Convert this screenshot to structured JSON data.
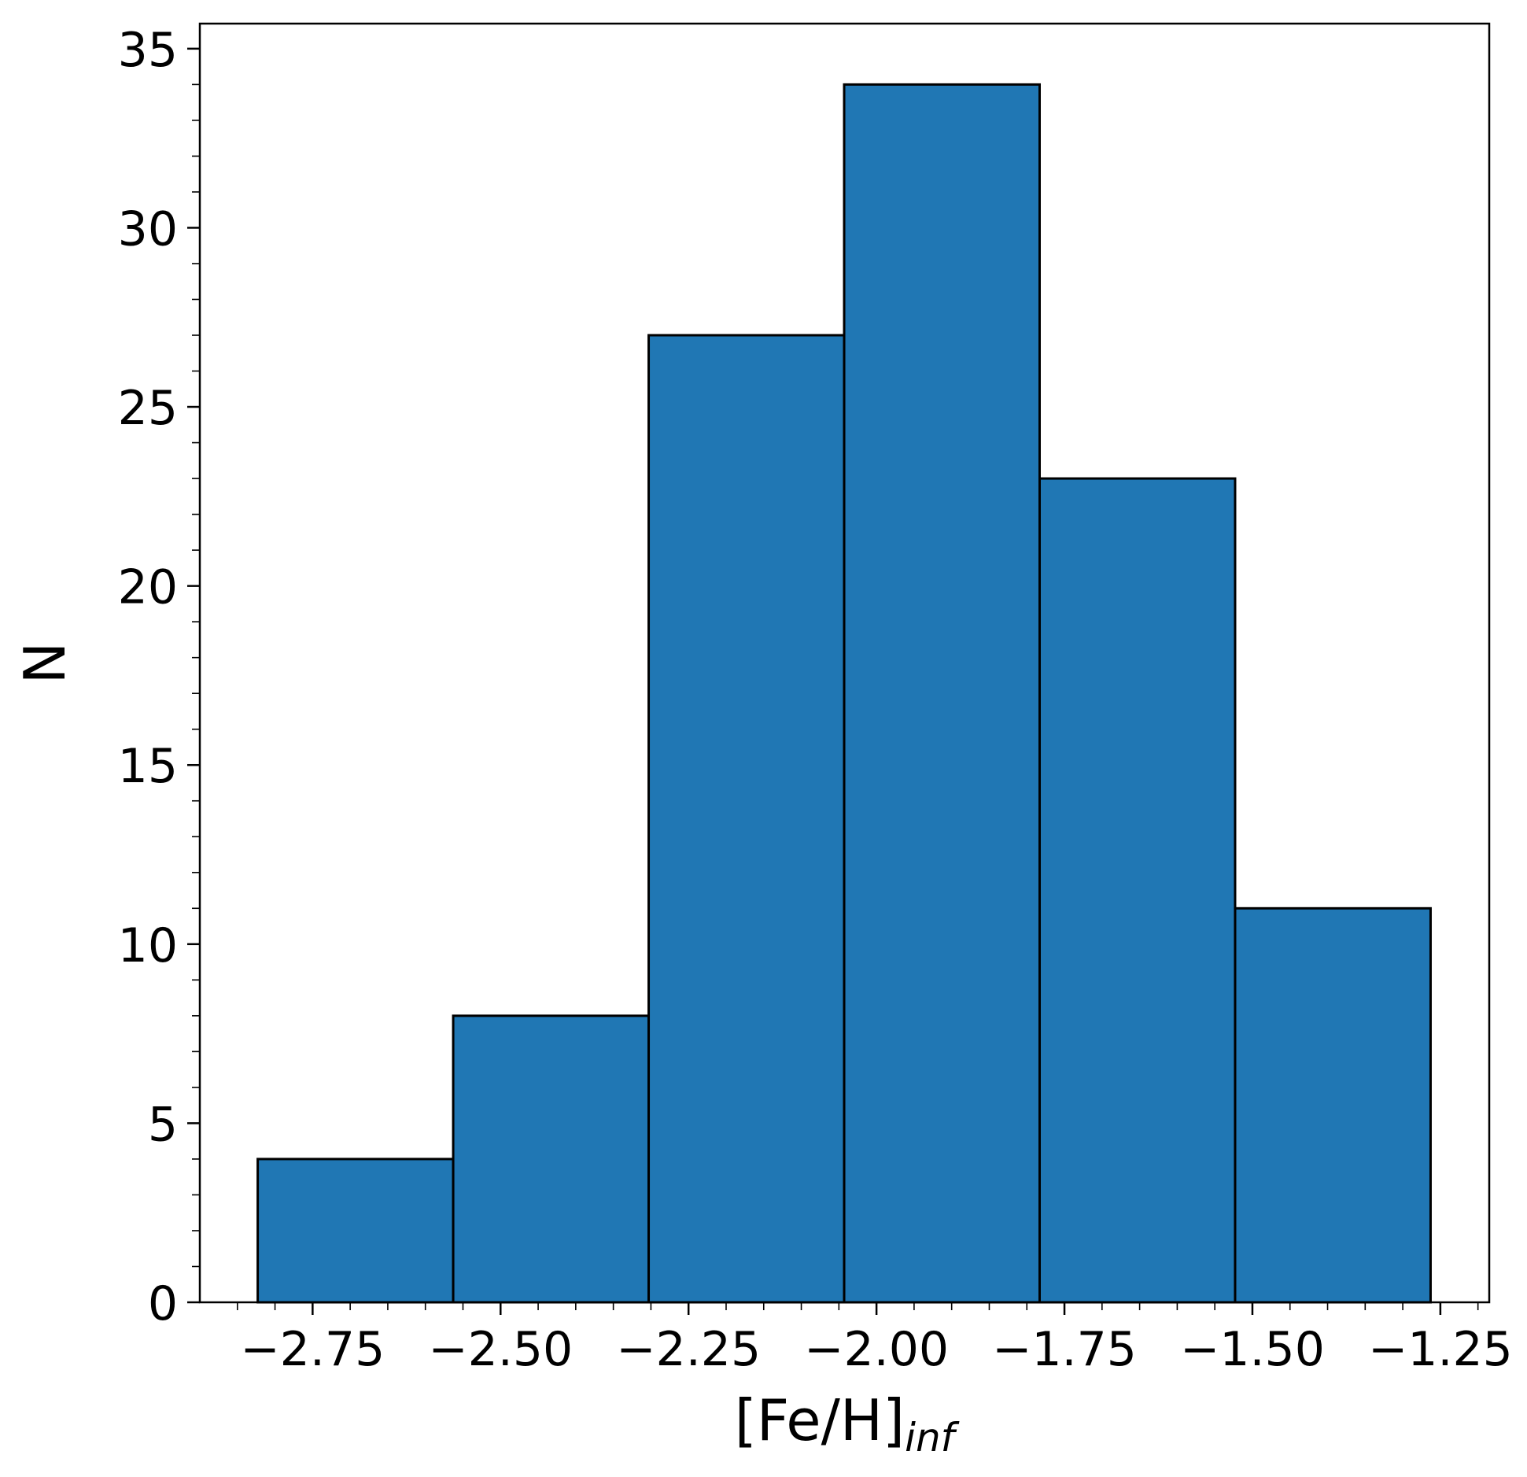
{
  "chart_data": {
    "type": "bar",
    "subtype": "histogram",
    "title": "",
    "xlabel": "[Fe/H]",
    "xlabel_subscript": "inf",
    "ylabel": "N",
    "bins": [
      {
        "x0": -2.823,
        "x1": -2.563,
        "count": 4
      },
      {
        "x0": -2.563,
        "x1": -2.303,
        "count": 8
      },
      {
        "x0": -2.303,
        "x1": -2.043,
        "count": 27
      },
      {
        "x0": -2.043,
        "x1": -1.783,
        "count": 34
      },
      {
        "x0": -1.783,
        "x1": -1.523,
        "count": 23
      },
      {
        "x0": -1.523,
        "x1": -1.263,
        "count": 11
      }
    ],
    "xlim": [
      -2.9,
      -1.185
    ],
    "ylim": [
      0,
      35.7
    ],
    "xticks": [
      -2.75,
      -2.5,
      -2.25,
      -2.0,
      -1.75,
      -1.5,
      -1.25
    ],
    "xtick_labels": [
      "−2.75",
      "−2.50",
      "−2.25",
      "−2.00",
      "−1.75",
      "−1.50",
      "−1.25"
    ],
    "yticks": [
      0,
      5,
      10,
      15,
      20,
      25,
      30,
      35
    ],
    "ytick_labels": [
      "0",
      "5",
      "10",
      "15",
      "20",
      "25",
      "30",
      "35"
    ],
    "x_minor_step": 0.05,
    "y_minor_step": 1,
    "bar_color": "#2077b4",
    "edge_color": "#000000",
    "grid": false,
    "legend": "none"
  }
}
